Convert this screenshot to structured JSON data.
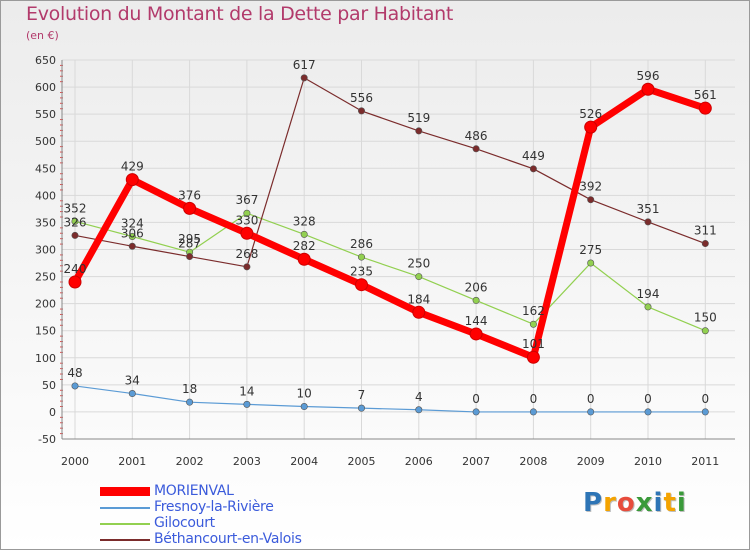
{
  "chart_data": {
    "type": "line",
    "title": "Evolution du Montant de la Dette par Habitant",
    "subtitle": "(en €)",
    "categories": [
      "2000",
      "2001",
      "2002",
      "2003",
      "2004",
      "2005",
      "2006",
      "2007",
      "2008",
      "2009",
      "2010",
      "2011"
    ],
    "ylim": [
      -50,
      650
    ],
    "yticks": [
      -50,
      0,
      50,
      100,
      150,
      200,
      250,
      300,
      350,
      400,
      450,
      500,
      550,
      600,
      650
    ],
    "grid": true,
    "series": [
      {
        "name": "MORIENVAL",
        "color": "#ff0000",
        "emphasis": true,
        "values": [
          240,
          429,
          376,
          330,
          282,
          235,
          184,
          144,
          101,
          526,
          596,
          561
        ]
      },
      {
        "name": "Fresnoy-la-Rivière",
        "color": "#5b9bd5",
        "emphasis": false,
        "values": [
          48,
          34,
          18,
          14,
          10,
          7,
          4,
          0,
          0,
          0,
          0,
          0
        ]
      },
      {
        "name": "Gilocourt",
        "color": "#92d050",
        "emphasis": false,
        "values": [
          352,
          324,
          295,
          367,
          328,
          286,
          250,
          206,
          162,
          275,
          194,
          150
        ]
      },
      {
        "name": "Béthancourt-en-Valois",
        "color": "#7b2c2c",
        "emphasis": false,
        "values": [
          326,
          306,
          287,
          268,
          617,
          556,
          519,
          486,
          449,
          392,
          351,
          311
        ]
      }
    ]
  },
  "brand": {
    "text": "Proxiti",
    "letters": [
      "P",
      "r",
      "o",
      "x",
      "i",
      "t",
      "i"
    ],
    "colors": [
      "#2e75b6",
      "#f4a300",
      "#e74c3c",
      "#3a9a3a",
      "#2e75b6",
      "#f4a300",
      "#3a9a3a"
    ]
  }
}
